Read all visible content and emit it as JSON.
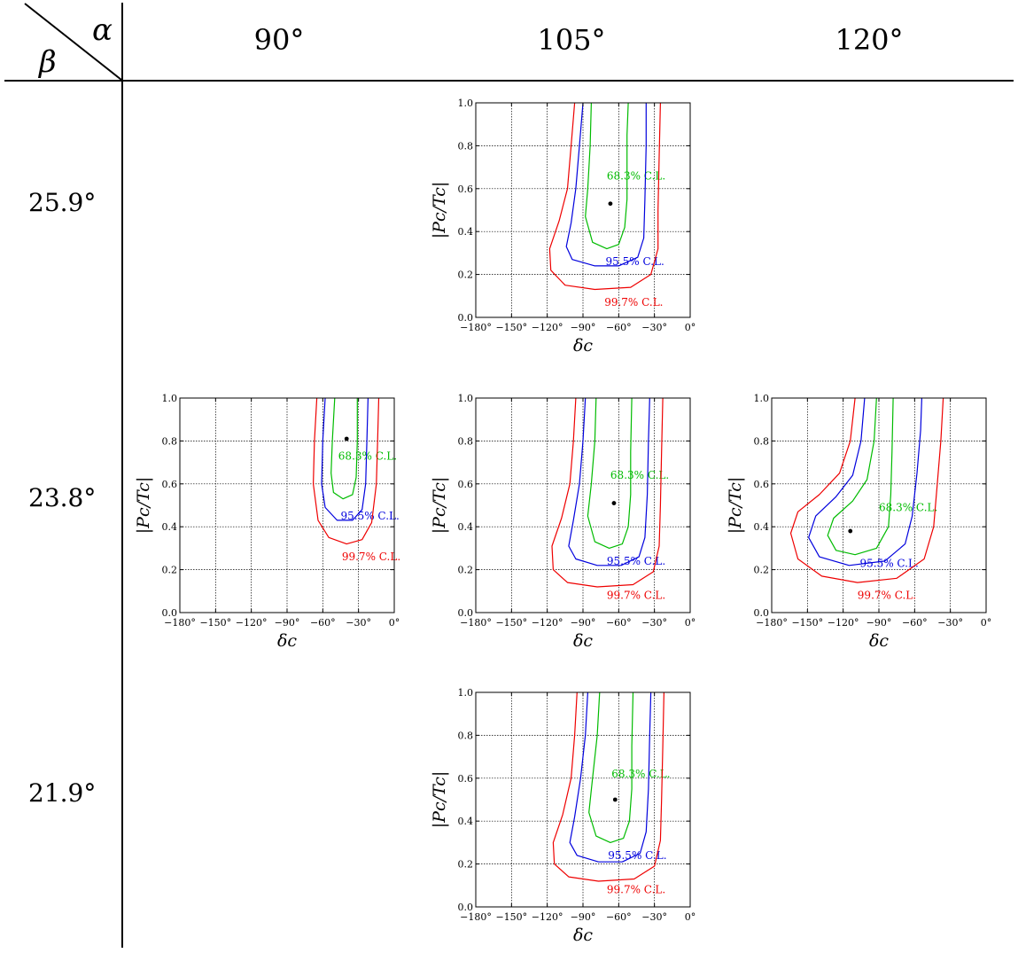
{
  "header": {
    "alpha_symbol": "α",
    "beta_symbol": "β",
    "columns": [
      "90°",
      "105°",
      "120°"
    ],
    "rows": [
      "25.9°",
      "23.8°",
      "21.9°"
    ]
  },
  "chart_data": [
    {
      "type": "contour",
      "grid_cell": "beta 25.9° / alpha 105°",
      "xlabel": "δc",
      "ylabel": "|Pc/Tc|",
      "xlim": [
        -180,
        0
      ],
      "ylim": [
        0,
        1
      ],
      "xticks": [
        "−180°",
        "−150°",
        "−120°",
        "−90°",
        "−60°",
        "−30°",
        "0°"
      ],
      "yticks": [
        "0.0",
        "0.2",
        "0.4",
        "0.6",
        "0.8",
        "1.0"
      ],
      "best_fit": {
        "x": -67,
        "y": 0.53
      },
      "contours": [
        {
          "name": "68.3% C.L.",
          "color": "#00bb00",
          "label_at": {
            "x": -70,
            "y": 0.66
          },
          "points": [
            [
              -83,
              1.0
            ],
            [
              -84,
              0.8
            ],
            [
              -86,
              0.6
            ],
            [
              -88,
              0.47
            ],
            [
              -82,
              0.35
            ],
            [
              -70,
              0.32
            ],
            [
              -60,
              0.34
            ],
            [
              -55,
              0.42
            ],
            [
              -53,
              0.55
            ],
            [
              -53,
              0.7
            ],
            [
              -53,
              0.85
            ],
            [
              -52,
              1.0
            ]
          ]
        },
        {
          "name": "95.5% C.L.",
          "color": "#0000dd",
          "label_at": {
            "x": -71,
            "y": 0.26
          },
          "points": [
            [
              -90,
              1.0
            ],
            [
              -93,
              0.8
            ],
            [
              -96,
              0.6
            ],
            [
              -100,
              0.44
            ],
            [
              -104,
              0.33
            ],
            [
              -99,
              0.27
            ],
            [
              -80,
              0.24
            ],
            [
              -60,
              0.24
            ],
            [
              -44,
              0.28
            ],
            [
              -39,
              0.37
            ],
            [
              -38,
              0.55
            ],
            [
              -37,
              0.8
            ],
            [
              -37,
              1.0
            ]
          ]
        },
        {
          "name": "99.7% C.L.",
          "color": "#ee0000",
          "label_at": {
            "x": -72,
            "y": 0.07
          },
          "points": [
            [
              -97,
              1.0
            ],
            [
              -100,
              0.8
            ],
            [
              -103,
              0.6
            ],
            [
              -110,
              0.45
            ],
            [
              -118,
              0.32
            ],
            [
              -117,
              0.22
            ],
            [
              -105,
              0.15
            ],
            [
              -80,
              0.13
            ],
            [
              -50,
              0.14
            ],
            [
              -33,
              0.2
            ],
            [
              -27,
              0.32
            ],
            [
              -27,
              0.5
            ],
            [
              -26,
              0.75
            ],
            [
              -25,
              1.0
            ]
          ]
        }
      ]
    },
    {
      "type": "contour",
      "grid_cell": "beta 23.8° / alpha 90°",
      "xlabel": "δc",
      "ylabel": "|Pc/Tc|",
      "xlim": [
        -180,
        0
      ],
      "ylim": [
        0,
        1
      ],
      "xticks": [
        "−180°",
        "−150°",
        "−120°",
        "−90°",
        "−60°",
        "−30°",
        "0°"
      ],
      "yticks": [
        "0.0",
        "0.2",
        "0.4",
        "0.6",
        "0.8",
        "1.0"
      ],
      "best_fit": {
        "x": -40,
        "y": 0.81
      },
      "contours": [
        {
          "name": "68.3% C.L.",
          "color": "#00bb00",
          "label_at": {
            "x": -47,
            "y": 0.73
          },
          "points": [
            [
              -50,
              1.0
            ],
            [
              -52,
              0.8
            ],
            [
              -53,
              0.65
            ],
            [
              -51,
              0.56
            ],
            [
              -43,
              0.53
            ],
            [
              -35,
              0.55
            ],
            [
              -32,
              0.63
            ],
            [
              -31,
              0.8
            ],
            [
              -31,
              1.0
            ]
          ]
        },
        {
          "name": "95.5% C.L.",
          "color": "#0000dd",
          "label_at": {
            "x": -45,
            "y": 0.45
          },
          "points": [
            [
              -58,
              1.0
            ],
            [
              -60,
              0.8
            ],
            [
              -61,
              0.6
            ],
            [
              -58,
              0.49
            ],
            [
              -48,
              0.43
            ],
            [
              -35,
              0.43
            ],
            [
              -27,
              0.48
            ],
            [
              -24,
              0.6
            ],
            [
              -23,
              0.8
            ],
            [
              -22,
              1.0
            ]
          ]
        },
        {
          "name": "99.7% C.L.",
          "color": "#ee0000",
          "label_at": {
            "x": -44,
            "y": 0.26
          },
          "points": [
            [
              -65,
              1.0
            ],
            [
              -67,
              0.8
            ],
            [
              -68,
              0.6
            ],
            [
              -64,
              0.43
            ],
            [
              -55,
              0.35
            ],
            [
              -40,
              0.32
            ],
            [
              -27,
              0.34
            ],
            [
              -19,
              0.42
            ],
            [
              -15,
              0.6
            ],
            [
              -14,
              0.8
            ],
            [
              -13,
              1.0
            ]
          ]
        }
      ]
    },
    {
      "type": "contour",
      "grid_cell": "beta 23.8° / alpha 105°",
      "xlabel": "δc",
      "ylabel": "|Pc/Tc|",
      "xlim": [
        -180,
        0
      ],
      "ylim": [
        0,
        1
      ],
      "xticks": [
        "−180°",
        "−150°",
        "−120°",
        "−90°",
        "−60°",
        "−30°",
        "0°"
      ],
      "yticks": [
        "0.0",
        "0.2",
        "0.4",
        "0.6",
        "0.8",
        "1.0"
      ],
      "best_fit": {
        "x": -64,
        "y": 0.51
      },
      "contours": [
        {
          "name": "68.3% C.L.",
          "color": "#00bb00",
          "label_at": {
            "x": -67,
            "y": 0.64
          },
          "points": [
            [
              -79,
              1.0
            ],
            [
              -80,
              0.8
            ],
            [
              -83,
              0.6
            ],
            [
              -86,
              0.45
            ],
            [
              -80,
              0.33
            ],
            [
              -68,
              0.3
            ],
            [
              -57,
              0.32
            ],
            [
              -52,
              0.4
            ],
            [
              -50,
              0.55
            ],
            [
              -50,
              0.75
            ],
            [
              -49,
              1.0
            ]
          ]
        },
        {
          "name": "95.5% C.L.",
          "color": "#0000dd",
          "label_at": {
            "x": -70,
            "y": 0.24
          },
          "points": [
            [
              -88,
              1.0
            ],
            [
              -90,
              0.8
            ],
            [
              -93,
              0.6
            ],
            [
              -98,
              0.43
            ],
            [
              -102,
              0.31
            ],
            [
              -96,
              0.25
            ],
            [
              -78,
              0.22
            ],
            [
              -58,
              0.22
            ],
            [
              -43,
              0.26
            ],
            [
              -38,
              0.35
            ],
            [
              -36,
              0.55
            ],
            [
              -35,
              0.8
            ],
            [
              -34,
              1.0
            ]
          ]
        },
        {
          "name": "99.7% C.L.",
          "color": "#ee0000",
          "label_at": {
            "x": -70,
            "y": 0.08
          },
          "points": [
            [
              -96,
              1.0
            ],
            [
              -98,
              0.8
            ],
            [
              -101,
              0.6
            ],
            [
              -108,
              0.44
            ],
            [
              -116,
              0.31
            ],
            [
              -115,
              0.2
            ],
            [
              -103,
              0.14
            ],
            [
              -78,
              0.12
            ],
            [
              -48,
              0.13
            ],
            [
              -31,
              0.19
            ],
            [
              -26,
              0.31
            ],
            [
              -25,
              0.5
            ],
            [
              -24,
              0.75
            ],
            [
              -23,
              1.0
            ]
          ]
        }
      ]
    },
    {
      "type": "contour",
      "grid_cell": "beta 23.8° / alpha 120°",
      "xlabel": "δc",
      "ylabel": "|Pc/Tc|",
      "xlim": [
        -180,
        0
      ],
      "ylim": [
        0,
        1
      ],
      "xticks": [
        "−180°",
        "−150°",
        "−120°",
        "−90°",
        "−60°",
        "−30°",
        "0°"
      ],
      "yticks": [
        "0.0",
        "0.2",
        "0.4",
        "0.6",
        "0.8",
        "1.0"
      ],
      "best_fit": {
        "x": -114,
        "y": 0.38
      },
      "contours": [
        {
          "name": "68.3% C.L.",
          "color": "#00bb00",
          "label_at": {
            "x": -90,
            "y": 0.49
          },
          "points": [
            [
              -92,
              1.0
            ],
            [
              -94,
              0.8
            ],
            [
              -100,
              0.62
            ],
            [
              -112,
              0.52
            ],
            [
              -128,
              0.44
            ],
            [
              -133,
              0.36
            ],
            [
              -126,
              0.29
            ],
            [
              -110,
              0.27
            ],
            [
              -92,
              0.3
            ],
            [
              -82,
              0.4
            ],
            [
              -80,
              0.55
            ],
            [
              -79,
              0.75
            ],
            [
              -78,
              1.0
            ]
          ]
        },
        {
          "name": "95.5% C.L.",
          "color": "#0000dd",
          "label_at": {
            "x": -106,
            "y": 0.23
          },
          "points": [
            [
              -102,
              1.0
            ],
            [
              -105,
              0.8
            ],
            [
              -112,
              0.64
            ],
            [
              -126,
              0.54
            ],
            [
              -143,
              0.45
            ],
            [
              -149,
              0.35
            ],
            [
              -140,
              0.26
            ],
            [
              -115,
              0.22
            ],
            [
              -85,
              0.24
            ],
            [
              -68,
              0.32
            ],
            [
              -62,
              0.45
            ],
            [
              -58,
              0.65
            ],
            [
              -55,
              0.85
            ],
            [
              -54,
              1.0
            ]
          ]
        },
        {
          "name": "99.7% C.L.",
          "color": "#ee0000",
          "label_at": {
            "x": -108,
            "y": 0.08
          },
          "points": [
            [
              -110,
              1.0
            ],
            [
              -114,
              0.8
            ],
            [
              -123,
              0.65
            ],
            [
              -140,
              0.55
            ],
            [
              -158,
              0.47
            ],
            [
              -164,
              0.37
            ],
            [
              -158,
              0.25
            ],
            [
              -138,
              0.17
            ],
            [
              -108,
              0.14
            ],
            [
              -75,
              0.16
            ],
            [
              -52,
              0.25
            ],
            [
              -44,
              0.4
            ],
            [
              -41,
              0.6
            ],
            [
              -38,
              0.8
            ],
            [
              -36,
              1.0
            ]
          ]
        }
      ]
    },
    {
      "type": "contour",
      "grid_cell": "beta 21.9° / alpha 105°",
      "xlabel": "δc",
      "ylabel": "|Pc/Tc|",
      "xlim": [
        -180,
        0
      ],
      "ylim": [
        0,
        1
      ],
      "xticks": [
        "−180°",
        "−150°",
        "−120°",
        "−90°",
        "−60°",
        "−30°",
        "0°"
      ],
      "yticks": [
        "0.0",
        "0.2",
        "0.4",
        "0.6",
        "0.8",
        "1.0"
      ],
      "best_fit": {
        "x": -63,
        "y": 0.5
      },
      "contours": [
        {
          "name": "68.3% C.L.",
          "color": "#00bb00",
          "label_at": {
            "x": -66,
            "y": 0.62
          },
          "points": [
            [
              -76,
              1.0
            ],
            [
              -78,
              0.8
            ],
            [
              -82,
              0.6
            ],
            [
              -85,
              0.44
            ],
            [
              -79,
              0.33
            ],
            [
              -67,
              0.3
            ],
            [
              -56,
              0.32
            ],
            [
              -51,
              0.4
            ],
            [
              -49,
              0.55
            ],
            [
              -49,
              0.75
            ],
            [
              -48,
              1.0
            ]
          ]
        },
        {
          "name": "95.5% C.L.",
          "color": "#0000dd",
          "label_at": {
            "x": -69,
            "y": 0.24
          },
          "points": [
            [
              -86,
              1.0
            ],
            [
              -88,
              0.8
            ],
            [
              -92,
              0.6
            ],
            [
              -97,
              0.42
            ],
            [
              -101,
              0.3
            ],
            [
              -95,
              0.24
            ],
            [
              -77,
              0.21
            ],
            [
              -57,
              0.21
            ],
            [
              -42,
              0.25
            ],
            [
              -37,
              0.35
            ],
            [
              -35,
              0.55
            ],
            [
              -34,
              0.8
            ],
            [
              -33,
              1.0
            ]
          ]
        },
        {
          "name": "99.7% C.L.",
          "color": "#ee0000",
          "label_at": {
            "x": -70,
            "y": 0.08
          },
          "points": [
            [
              -95,
              1.0
            ],
            [
              -97,
              0.8
            ],
            [
              -100,
              0.6
            ],
            [
              -107,
              0.43
            ],
            [
              -115,
              0.3
            ],
            [
              -114,
              0.2
            ],
            [
              -102,
              0.14
            ],
            [
              -77,
              0.12
            ],
            [
              -47,
              0.13
            ],
            [
              -30,
              0.19
            ],
            [
              -25,
              0.31
            ],
            [
              -24,
              0.5
            ],
            [
              -23,
              0.75
            ],
            [
              -22,
              1.0
            ]
          ]
        }
      ]
    }
  ]
}
